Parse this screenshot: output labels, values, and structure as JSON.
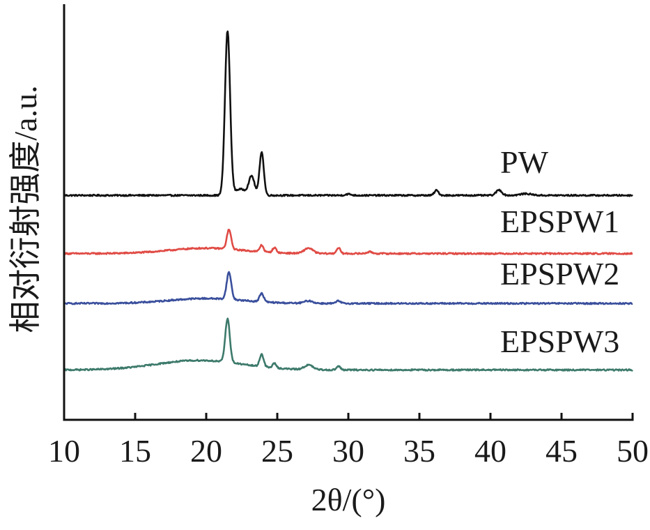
{
  "chart_data": {
    "type": "line",
    "title": "",
    "xlabel": "2θ/(°)",
    "ylabel": "相对衍射强度/a.u.",
    "xlim": [
      10,
      50
    ],
    "x_ticks": [
      10,
      15,
      20,
      25,
      30,
      35,
      40,
      45,
      50
    ],
    "x_tick_labels": [
      "10",
      "15",
      "20",
      "25",
      "30",
      "35",
      "40",
      "45",
      "50"
    ],
    "y_ticks_shown": false,
    "ylim": [
      0,
      100
    ],
    "grid": false,
    "legend": "inline labels at right end of each curve",
    "series": [
      {
        "name": "PW",
        "color": "#111111",
        "baseline": 54,
        "noise": 0.35,
        "peaks": [
          {
            "x": 21.5,
            "height": 39.5,
            "width": 0.18
          },
          {
            "x": 23.2,
            "height": 4.5,
            "width": 0.2
          },
          {
            "x": 23.9,
            "height": 10.5,
            "width": 0.15
          },
          {
            "x": 22.4,
            "height": 1.5,
            "width": 0.4
          },
          {
            "x": 36.2,
            "height": 1.2,
            "width": 0.15
          },
          {
            "x": 40.6,
            "height": 1.3,
            "width": 0.2
          },
          {
            "x": 42.5,
            "height": 0.4,
            "width": 0.4
          },
          {
            "x": 30.0,
            "height": 0.3,
            "width": 0.2
          }
        ],
        "humps": []
      },
      {
        "name": "EPSPW1",
        "color": "#e04b45",
        "baseline": 40,
        "noise": 0.35,
        "peaks": [
          {
            "x": 21.6,
            "height": 4.7,
            "width": 0.15
          },
          {
            "x": 23.9,
            "height": 1.6,
            "width": 0.13
          },
          {
            "x": 24.8,
            "height": 1.2,
            "width": 0.13
          },
          {
            "x": 27.2,
            "height": 1.3,
            "width": 0.3
          },
          {
            "x": 29.3,
            "height": 1.4,
            "width": 0.13
          },
          {
            "x": 31.5,
            "height": 0.4,
            "width": 0.2
          }
        ],
        "humps": [
          {
            "x": 20.0,
            "height": 1.3,
            "width": 2.6
          }
        ]
      },
      {
        "name": "EPSPW2",
        "color": "#3a4f9c",
        "baseline": 28,
        "noise": 0.35,
        "peaks": [
          {
            "x": 21.6,
            "height": 6.5,
            "width": 0.16
          },
          {
            "x": 23.9,
            "height": 2.0,
            "width": 0.15
          },
          {
            "x": 27.2,
            "height": 0.6,
            "width": 0.3
          },
          {
            "x": 29.3,
            "height": 0.6,
            "width": 0.15
          }
        ],
        "humps": [
          {
            "x": 20.0,
            "height": 1.2,
            "width": 2.6
          }
        ]
      },
      {
        "name": "EPSPW3",
        "color": "#3d7a6b",
        "baseline": 12,
        "noise": 0.35,
        "peaks": [
          {
            "x": 21.5,
            "height": 10.5,
            "width": 0.16
          },
          {
            "x": 23.9,
            "height": 3.0,
            "width": 0.14
          },
          {
            "x": 24.8,
            "height": 1.1,
            "width": 0.13
          },
          {
            "x": 27.2,
            "height": 1.1,
            "width": 0.3
          },
          {
            "x": 29.3,
            "height": 0.9,
            "width": 0.13
          }
        ],
        "humps": [
          {
            "x": 19.5,
            "height": 2.3,
            "width": 3.0
          }
        ]
      }
    ]
  }
}
